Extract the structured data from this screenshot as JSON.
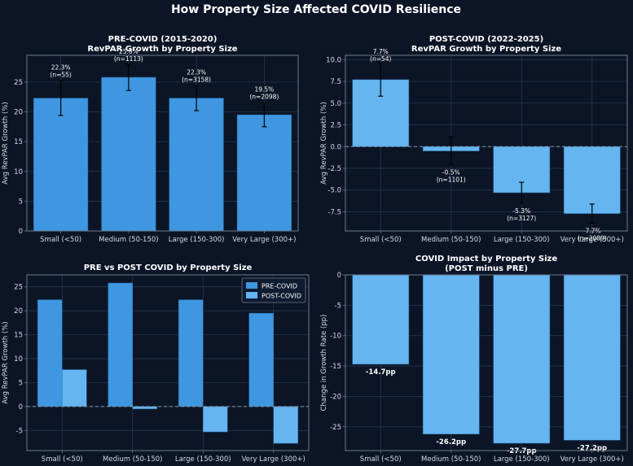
{
  "figure_title": "How Property Size Affected COVID Resilience",
  "theme": {
    "background": "#0b1526",
    "plot_border": "#6c7a8c",
    "grid": "#2a3a52",
    "text": "#ffffff",
    "tick": "#d5dbe3",
    "pre_color": "#3e97e0",
    "post_color": "#64b5f0",
    "impact_color": "#64b5f0",
    "bar_edge": "#2b6ea8",
    "error_color": "#000000",
    "zero_line": "#8a97a8"
  },
  "chart_data": [
    {
      "id": "pre",
      "type": "bar",
      "title": "PRE-COVID (2015-2020)",
      "subtitle": "RevPAR Growth by Property Size",
      "xlabel": "",
      "ylabel": "Avg RevPAR Growth (%)",
      "ylim": [
        0,
        29.5
      ],
      "yticks": [
        "0",
        "5",
        "10",
        "15",
        "20",
        "25"
      ],
      "grid": true,
      "categories": [
        "Small (<50)",
        "Medium (50-150)",
        "Large (150-300)",
        "Very Large (300+)"
      ],
      "values": [
        22.3,
        25.8,
        22.3,
        19.5
      ],
      "errors": [
        2.9,
        2.2,
        2.1,
        2.0
      ],
      "value_labels": [
        "22.3%",
        "25.8%",
        "22.3%",
        "19.5%"
      ],
      "n_labels": [
        "(n=55)",
        "(n=1113)",
        "(n=3158)",
        "(n=2098)"
      ],
      "zero_line": false
    },
    {
      "id": "post",
      "type": "bar",
      "title": "POST-COVID (2022-2025)",
      "subtitle": "RevPAR Growth by Property Size",
      "xlabel": "",
      "ylabel": "Avg RevPAR Growth (%)",
      "ylim": [
        -9.7,
        10.5
      ],
      "yticks": [
        "-7.5",
        "-5.0",
        "-2.5",
        "0.0",
        "2.5",
        "5.0",
        "7.5",
        "10.0"
      ],
      "grid": true,
      "categories": [
        "Small (<50)",
        "Medium (50-150)",
        "Large (150-300)",
        "Very Large (300+)"
      ],
      "values": [
        7.7,
        -0.5,
        -5.3,
        -7.7
      ],
      "errors": [
        1.9,
        1.6,
        1.2,
        1.1
      ],
      "value_labels": [
        "7.7%",
        "-0.5%",
        "-5.3%",
        "-7.7%"
      ],
      "n_labels": [
        "(n=54)",
        "(n=1101)",
        "(n=3127)",
        "(n=2089)"
      ],
      "zero_line": true
    },
    {
      "id": "compare",
      "type": "bar",
      "title": "PRE vs POST COVID by Property Size",
      "xlabel": "",
      "ylabel": "Avg RevPAR Growth (%)",
      "ylim": [
        -9.2,
        27.5
      ],
      "yticks": [
        "-5",
        "0",
        "5",
        "10",
        "15",
        "20",
        "25"
      ],
      "grid": true,
      "categories": [
        "Small (<50)",
        "Medium (50-150)",
        "Large (150-300)",
        "Very Large (300+)"
      ],
      "series": [
        {
          "name": "PRE-COVID",
          "values": [
            22.3,
            25.8,
            22.3,
            19.5
          ]
        },
        {
          "name": "POST-COVID",
          "values": [
            7.7,
            -0.5,
            -5.3,
            -7.7
          ]
        }
      ],
      "legend": "top-right",
      "zero_line": true
    },
    {
      "id": "impact",
      "type": "bar",
      "title": "COVID Impact by Property Size",
      "subtitle": "(POST minus PRE)",
      "xlabel": "",
      "ylabel": "Change in Growth Rate (pp)",
      "ylim": [
        -28.9,
        0
      ],
      "yticks": [
        "-25",
        "-20",
        "-15",
        "-10",
        "-5",
        "0"
      ],
      "grid": true,
      "categories": [
        "Small (<50)",
        "Medium (50-150)",
        "Large (150-300)",
        "Very Large (300+)"
      ],
      "values": [
        -14.7,
        -26.2,
        -27.7,
        -27.2
      ],
      "value_labels": [
        "-14.7pp",
        "-26.2pp",
        "-27.7pp",
        "-27.2pp"
      ],
      "zero_line": true
    }
  ]
}
